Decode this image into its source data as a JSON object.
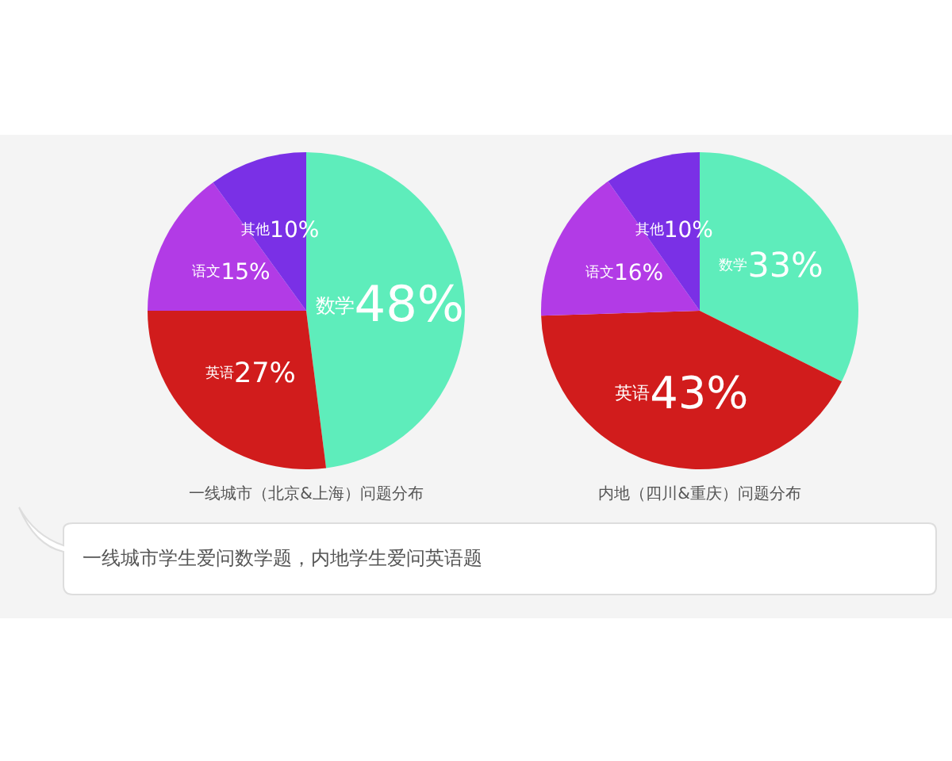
{
  "chart_data": [
    {
      "type": "pie",
      "title": "一线城市（北京&上海）问题分布",
      "categories": [
        "数学",
        "英语",
        "语文",
        "其他"
      ],
      "values": [
        48,
        27,
        15,
        10
      ],
      "value_labels": [
        "48%",
        "27%",
        "15%",
        "10%"
      ],
      "colors": [
        "#5eedbb",
        "#d11c1c",
        "#b23be6",
        "#7a30e6"
      ],
      "annotations": [
        "一线城市学生爱问数学题，内地学生爱问英语题"
      ]
    },
    {
      "type": "pie",
      "title": "内地（四川&重庆）问题分布",
      "categories": [
        "数学",
        "英语",
        "语文",
        "其他"
      ],
      "values": [
        33,
        43,
        16,
        10
      ],
      "value_labels": [
        "33%",
        "43%",
        "16%",
        "10%"
      ],
      "colors": [
        "#5eedbb",
        "#d11c1c",
        "#b23be6",
        "#7a30e6"
      ]
    }
  ]
}
